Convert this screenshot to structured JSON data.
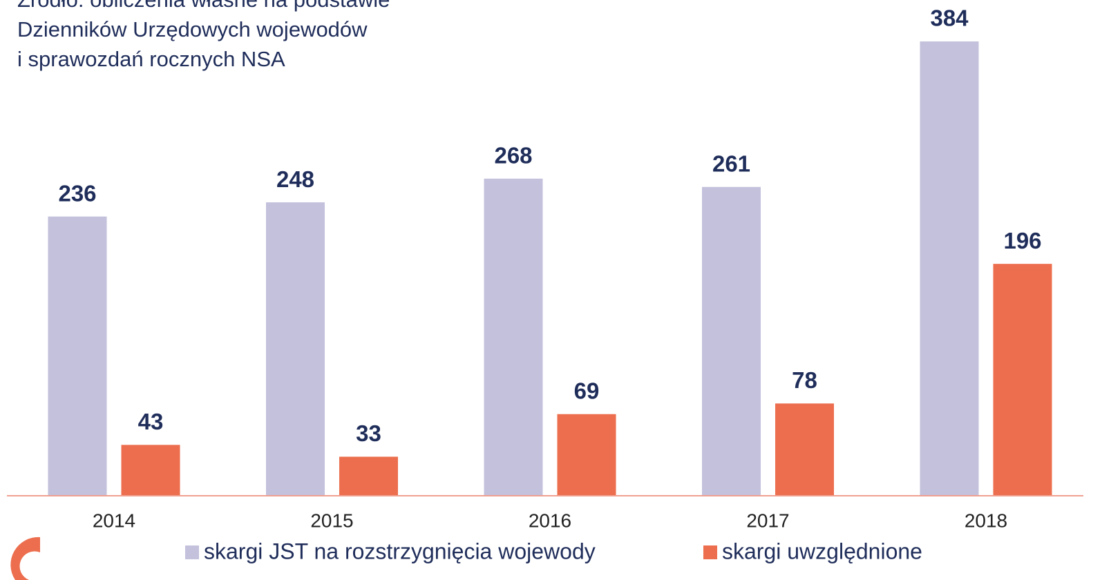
{
  "chart_data": {
    "type": "bar",
    "source": [
      "Źródło: obliczenia własne na podstawie",
      "Dzienników Urzędowych wojewodów",
      "i sprawozdań rocznych NSA"
    ],
    "categories": [
      "2014",
      "2015",
      "2016",
      "2017",
      "2018"
    ],
    "series": [
      {
        "name": "skargi JST na rozstrzygnięcia wojewody",
        "color": "#c3c1dc",
        "values": [
          236,
          248,
          268,
          261,
          384
        ]
      },
      {
        "name": "skargi uwzględnione",
        "color": "#ec6e4e",
        "values": [
          43,
          33,
          69,
          78,
          196
        ]
      }
    ]
  }
}
